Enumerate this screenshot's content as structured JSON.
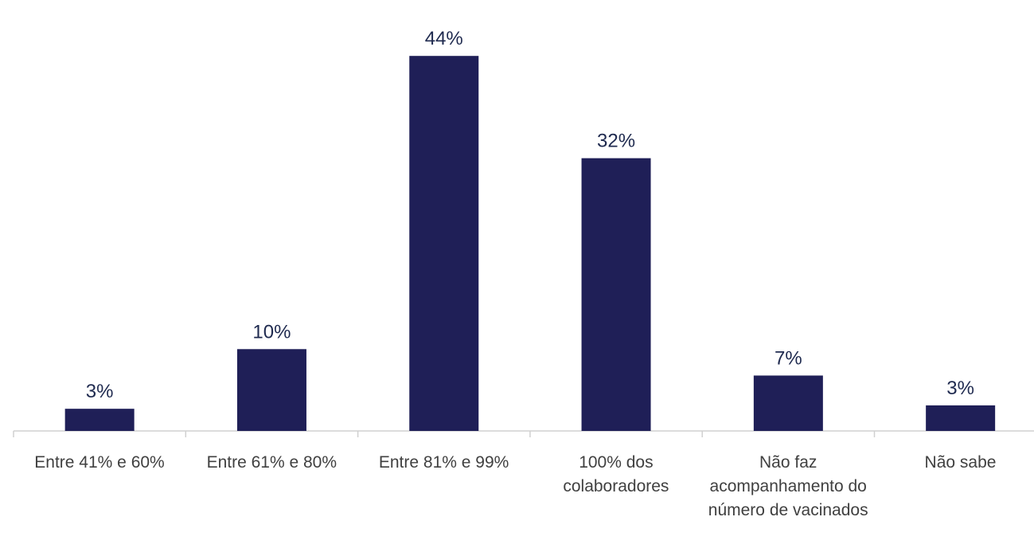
{
  "chart_data": {
    "type": "bar",
    "categories": [
      "Entre 41% e 60%",
      "Entre 61% e 80%",
      "Entre 81% e 99%",
      "100% dos colaboradores",
      "Não faz acompanhamento do número de vacinados",
      "Não sabe"
    ],
    "values": [
      2.6,
      9.6,
      44,
      32,
      6.5,
      3
    ],
    "value_labels": [
      "3%",
      "10%",
      "44%",
      "32%",
      "7%",
      "3%"
    ],
    "color": "#1f1f57",
    "ylim": [
      0,
      50
    ]
  }
}
